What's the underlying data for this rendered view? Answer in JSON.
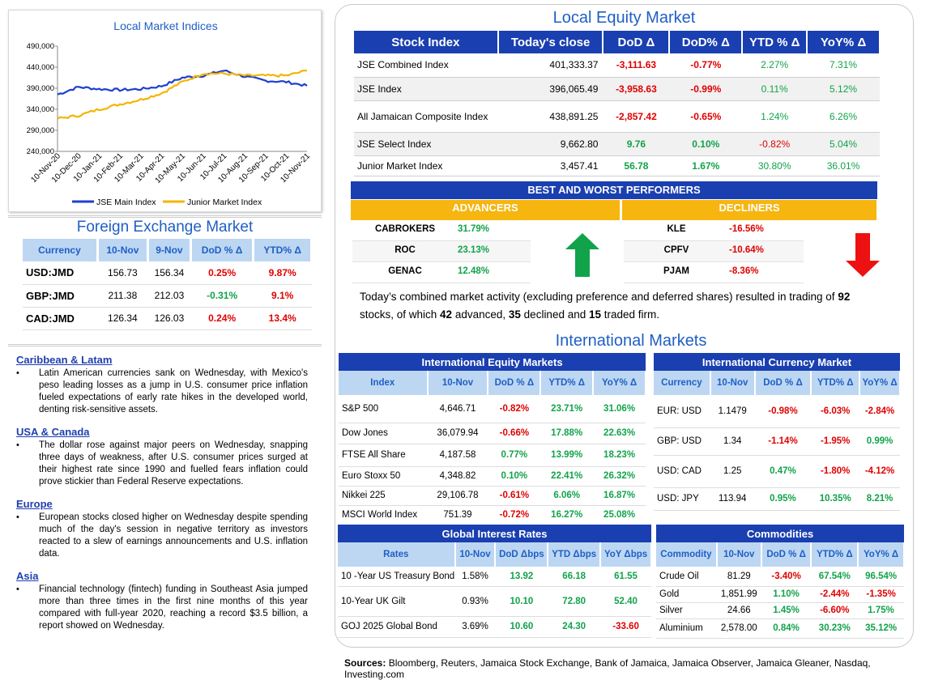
{
  "chart": {
    "title": "Local Market Indices",
    "y_ticks": [
      "490,000",
      "440,000",
      "390,000",
      "340,000",
      "290,000",
      "240,000"
    ],
    "x_ticks": [
      "10-Nov-20",
      "10-Dec-20",
      "10-Jan-21",
      "10-Feb-21",
      "10-Mar-21",
      "10-Apr-21",
      "10-May-21",
      "10-Jun-21",
      "10-Jul-21",
      "10-Aug-21",
      "10-Sep-21",
      "10-Oct-21",
      "10-Nov-21"
    ],
    "legend_main": "JSE Main Index",
    "legend_junior": "Junior Market Index",
    "color_main": "#1d3fd0",
    "color_junior": "#f4b400"
  },
  "chart_data": {
    "type": "line",
    "title": "Local Market Indices",
    "x": [
      "10-Nov-20",
      "10-Dec-20",
      "10-Jan-21",
      "10-Feb-21",
      "10-Mar-21",
      "10-Apr-21",
      "10-May-21",
      "10-Jun-21",
      "10-Jul-21",
      "10-Aug-21",
      "10-Sep-21",
      "10-Oct-21",
      "10-Nov-21"
    ],
    "ylim": [
      240000,
      490000
    ],
    "series": [
      {
        "name": "JSE Main Index",
        "values": [
          375000,
          393000,
          388000,
          386000,
          388000,
          395000,
          415000,
          420000,
          432000,
          418000,
          408000,
          405000,
          396000
        ]
      },
      {
        "name": "Junior Market Index",
        "values": [
          318000,
          325000,
          340000,
          352000,
          363000,
          378000,
          405000,
          425000,
          425000,
          420000,
          420000,
          420000,
          432000
        ]
      }
    ]
  },
  "fx": {
    "title": "Foreign Exchange Market",
    "headers": [
      "Currency",
      "10-Nov",
      "9-Nov",
      "DoD % Δ",
      "YTD% Δ"
    ],
    "rows": [
      [
        "USD:JMD",
        "156.73",
        "156.34",
        "0.25%",
        "9.87%"
      ],
      [
        "GBP:JMD",
        "211.38",
        "212.03",
        "-0.31%",
        "9.1%"
      ],
      [
        "CAD:JMD",
        "126.34",
        "126.03",
        "0.24%",
        "13.4%"
      ]
    ]
  },
  "news": [
    {
      "heading": "Caribbean & Latam",
      "text": "Latin American currencies sank on Wednesday, with Mexico's peso leading losses as a jump in U.S. consumer price inflation fueled expectations of early rate hikes in the developed world, denting risk-sensitive assets."
    },
    {
      "heading": "USA & Canada",
      "text": "The dollar rose against major peers on Wednesday, snapping three days of weakness, after U.S. consumer prices surged at their highest rate since 1990 and fuelled fears inflation could prove stickier than Federal Reserve expectations."
    },
    {
      "heading": "Europe",
      "text": "European stocks closed higher on Wednesday despite spending much of the day's session in negative territory as investors reacted to a slew of earnings announcements and U.S. inflation data."
    },
    {
      "heading": "Asia",
      "text": "Financial technology (fintech) funding in Southeast Asia jumped more than three times in the first nine months of this year compared with full-year 2020, reaching a record $3.5 billion, a report showed on Wednesday."
    }
  ],
  "local_equity": {
    "title": "Local Equity Market",
    "headers": [
      "Stock Index",
      "Today's close",
      "DoD  Δ",
      "DoD% Δ",
      "YTD % Δ",
      "YoY% Δ"
    ],
    "rows": [
      [
        "JSE Combined Index",
        "401,333.37",
        "-3,111.63",
        "-0.77%",
        "2.27%",
        "7.31%"
      ],
      [
        "JSE Index",
        "396,065.49",
        "-3,958.63",
        "-0.99%",
        "0.11%",
        "5.12%"
      ],
      [
        "All Jamaican Composite Index",
        "438,891.25",
        "-2,857.42",
        "-0.65%",
        "1.24%",
        "6.26%"
      ],
      [
        "JSE Select Index",
        "9,662.80",
        "9.76",
        "0.10%",
        "-0.82%",
        "5.04%"
      ],
      [
        "Junior Market Index",
        "3,457.41",
        "56.78",
        "1.67%",
        "30.80%",
        "36.01%"
      ]
    ]
  },
  "performers": {
    "title": "BEST AND WORST PERFORMERS",
    "advancers_label": "ADVANCERS",
    "decliners_label": "DECLINERS",
    "advancers": [
      [
        "CABROKERS",
        "31.79%"
      ],
      [
        "ROC",
        "23.13%"
      ],
      [
        "GENAC",
        "12.48%"
      ]
    ],
    "decliners": [
      [
        "KLE",
        "-16.56%"
      ],
      [
        "CPFV",
        "-10.64%"
      ],
      [
        "PJAM",
        "-8.36%"
      ]
    ]
  },
  "summary": {
    "p1": "Today’s combined market activity (excluding preference and deferred shares) resulted in trading of ",
    "n_total": "92",
    "p2": " stocks, of which ",
    "n_adv": "42",
    "p3": " advanced, ",
    "n_dec": "35",
    "p4": " declined and ",
    "n_firm": "15",
    "p5": " traded firm."
  },
  "intl": {
    "title": "International Markets",
    "equity": {
      "title": "International Equity Markets",
      "headers": [
        "Index",
        "10-Nov",
        "DoD % Δ",
        "YTD% Δ",
        "YoY% Δ"
      ],
      "rows": [
        [
          "S&P 500",
          "4,646.71",
          "-0.82%",
          "23.71%",
          "31.06%"
        ],
        [
          "Dow Jones",
          "36,079.94",
          "-0.66%",
          "17.88%",
          "22.63%"
        ],
        [
          "FTSE All Share",
          "4,187.58",
          "0.77%",
          "13.99%",
          "18.23%"
        ],
        [
          "Euro Stoxx 50",
          "4,348.82",
          "0.10%",
          "22.41%",
          "26.32%"
        ],
        [
          "Nikkei 225",
          "29,106.78",
          "-0.61%",
          "6.06%",
          "16.87%"
        ],
        [
          "MSCI World Index",
          "751.39",
          "-0.72%",
          "16.27%",
          "25.08%"
        ]
      ]
    },
    "currency": {
      "title": "International Currency Market",
      "headers": [
        "Currency",
        "10-Nov",
        "DoD % Δ",
        "YTD% Δ",
        "YoY% Δ"
      ],
      "rows": [
        [
          "EUR: USD",
          "1.1479",
          "-0.98%",
          "-6.03%",
          "-2.84%"
        ],
        [
          "GBP: USD",
          "1.34",
          "-1.14%",
          "-1.95%",
          "0.99%"
        ],
        [
          "USD: CAD",
          "1.25",
          "0.47%",
          "-1.80%",
          "-4.12%"
        ],
        [
          "USD: JPY",
          "113.94",
          "0.95%",
          "10.35%",
          "8.21%"
        ]
      ]
    },
    "rates": {
      "title": "Global Interest Rates",
      "headers": [
        "Rates",
        "10-Nov",
        "DoD Δbps",
        "YTD Δbps",
        "YoY Δbps"
      ],
      "rows": [
        [
          "10 -Year US Treasury Bond",
          "1.58%",
          "13.92",
          "66.18",
          "61.55"
        ],
        [
          "10-Year UK Gilt",
          "0.93%",
          "10.10",
          "72.80",
          "52.40"
        ],
        [
          "GOJ 2025 Global Bond",
          "3.69%",
          "10.60",
          "24.30",
          "-33.60"
        ]
      ]
    },
    "commodities": {
      "title": "Commodities",
      "headers": [
        "Commodity",
        "10-Nov",
        "DoD % Δ",
        "YTD% Δ",
        "YoY% Δ"
      ],
      "rows": [
        [
          "Crude Oil",
          "81.29",
          "-3.40%",
          "67.54%",
          "96.54%"
        ],
        [
          "Gold",
          "1,851.99",
          "1.10%",
          "-2.44%",
          "-1.35%"
        ],
        [
          "Silver",
          "24.66",
          "1.45%",
          "-6.60%",
          "1.75%"
        ],
        [
          "Aluminium",
          "2,578.00",
          "0.84%",
          "30.23%",
          "35.12%"
        ]
      ]
    }
  },
  "sources": {
    "label": "Sources:",
    "text": " Bloomberg, Reuters, Jamaica Stock Exchange, Bank of Jamaica, Jamaica Observer, Jamaica Gleaner, Nasdaq, Investing.com"
  }
}
